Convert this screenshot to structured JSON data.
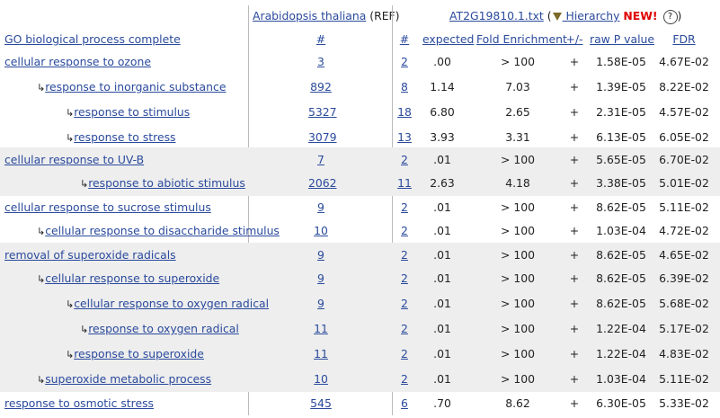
{
  "header": {
    "ref_organism_link": "Arabidopsis thaliana",
    "ref_suffix": "(REF)",
    "file_link": "AT2G19810.1.txt",
    "paren_open": "(",
    "hierarchy_link": " Hierarchy",
    "new_label": "NEW!",
    "help_glyph": "?",
    "paren_close": ")"
  },
  "columns": {
    "term": "GO biological process complete",
    "ref_count": "#",
    "count": "#",
    "expected": "expected",
    "fold": "Fold Enrichment",
    "direction": "+/-",
    "raw_p": "raw P value",
    "fdr": "FDR"
  },
  "rows": [
    {
      "indent": 0,
      "term": "cellular response to ozone",
      "ref": "3",
      "num": "2",
      "expected": ".00",
      "fold": "> 100",
      "dir": "+",
      "p": "1.58E-05",
      "fdr": "4.67E-02",
      "shade": false
    },
    {
      "indent": 1,
      "term": "response to inorganic substance",
      "ref": "892",
      "num": "8",
      "expected": "1.14",
      "fold": "7.03",
      "dir": "+",
      "p": "1.39E-05",
      "fdr": "8.22E-02",
      "shade": false
    },
    {
      "indent": 2,
      "term": "response to stimulus",
      "ref": "5327",
      "num": "18",
      "expected": "6.80",
      "fold": "2.65",
      "dir": "+",
      "p": "2.31E-05",
      "fdr": "4.57E-02",
      "shade": false
    },
    {
      "indent": 2,
      "term": "response to stress",
      "ref": "3079",
      "num": "13",
      "expected": "3.93",
      "fold": "3.31",
      "dir": "+",
      "p": "6.13E-05",
      "fdr": "6.05E-02",
      "shade": false
    },
    {
      "indent": 0,
      "term": "cellular response to UV-B",
      "ref": "7",
      "num": "2",
      "expected": ".01",
      "fold": "> 100",
      "dir": "+",
      "p": "5.65E-05",
      "fdr": "6.70E-02",
      "shade": true
    },
    {
      "indent": 3,
      "term": "response to abiotic stimulus",
      "ref": "2062",
      "num": "11",
      "expected": "2.63",
      "fold": "4.18",
      "dir": "+",
      "p": "3.38E-05",
      "fdr": "5.01E-02",
      "shade": true
    },
    {
      "indent": 0,
      "term": "cellular response to sucrose stimulus",
      "ref": "9",
      "num": "2",
      "expected": ".01",
      "fold": "> 100",
      "dir": "+",
      "p": "8.62E-05",
      "fdr": "5.11E-02",
      "shade": false
    },
    {
      "indent": 1,
      "term": "cellular response to disaccharide stimulus",
      "ref": "10",
      "num": "2",
      "expected": ".01",
      "fold": "> 100",
      "dir": "+",
      "p": "1.03E-04",
      "fdr": "4.72E-02",
      "shade": false
    },
    {
      "indent": 0,
      "term": "removal of superoxide radicals",
      "ref": "9",
      "num": "2",
      "expected": ".01",
      "fold": "> 100",
      "dir": "+",
      "p": "8.62E-05",
      "fdr": "4.65E-02",
      "shade": true
    },
    {
      "indent": 1,
      "term": "cellular response to superoxide",
      "ref": "9",
      "num": "2",
      "expected": ".01",
      "fold": "> 100",
      "dir": "+",
      "p": "8.62E-05",
      "fdr": "6.39E-02",
      "shade": true
    },
    {
      "indent": 2,
      "term": "cellular response to oxygen radical",
      "ref": "9",
      "num": "2",
      "expected": ".01",
      "fold": "> 100",
      "dir": "+",
      "p": "8.62E-05",
      "fdr": "5.68E-02",
      "shade": true
    },
    {
      "indent": 3,
      "term": "response to oxygen radical",
      "ref": "11",
      "num": "2",
      "expected": ".01",
      "fold": "> 100",
      "dir": "+",
      "p": "1.22E-04",
      "fdr": "5.17E-02",
      "shade": true
    },
    {
      "indent": 2,
      "term": "response to superoxide",
      "ref": "11",
      "num": "2",
      "expected": ".01",
      "fold": "> 100",
      "dir": "+",
      "p": "1.22E-04",
      "fdr": "4.83E-02",
      "shade": true
    },
    {
      "indent": 1,
      "term": "superoxide metabolic process",
      "ref": "10",
      "num": "2",
      "expected": ".01",
      "fold": "> 100",
      "dir": "+",
      "p": "1.03E-04",
      "fdr": "5.11E-02",
      "shade": true
    },
    {
      "indent": 0,
      "term": "response to osmotic stress",
      "ref": "545",
      "num": "6",
      "expected": ".70",
      "fold": "8.62",
      "dir": "+",
      "p": "6.30E-05",
      "fdr": "5.33E-02",
      "shade": false
    }
  ],
  "icons": {
    "hierarchy": "filter-triangle-icon",
    "indent": "child-arrow-icon",
    "help": "help-circle-icon"
  },
  "colors": {
    "link": "#2a4a9c",
    "shade": "#eeeeee",
    "new": "#e00000"
  }
}
